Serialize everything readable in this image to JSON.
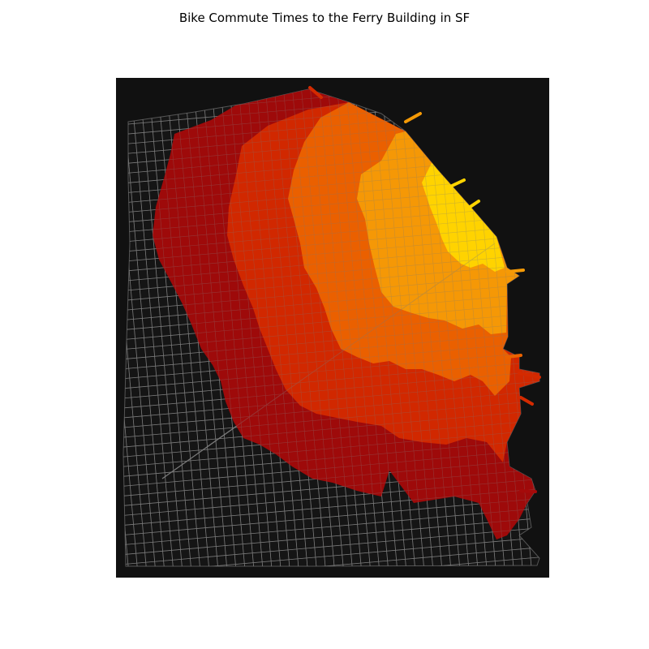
{
  "title": "Bike Commute Times to the Ferry Building in SF",
  "map": {
    "background_color": "#111111",
    "street_color": "#7a7a7a",
    "isochrone_bands": [
      {
        "id": "band-1",
        "color": "#ffd400"
      },
      {
        "id": "band-2",
        "color": "#f59a06"
      },
      {
        "id": "band-3",
        "color": "#eb6300"
      },
      {
        "id": "band-4",
        "color": "#d42a00"
      },
      {
        "id": "band-5",
        "color": "#a50a0a"
      }
    ]
  }
}
